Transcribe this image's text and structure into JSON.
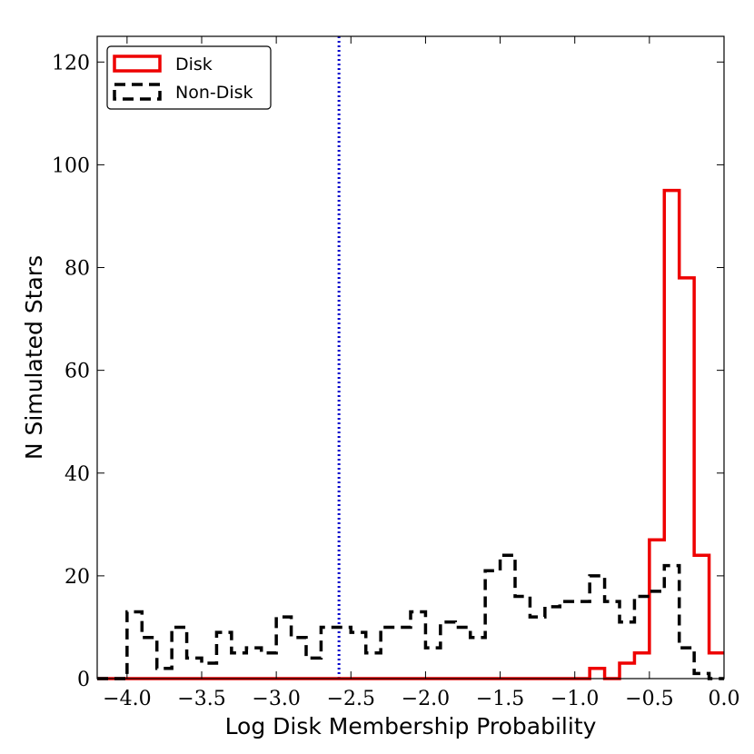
{
  "chart_data": {
    "type": "histogram",
    "title": "",
    "xlabel": "Log Disk Membership Probability",
    "ylabel": "N Simulated Stars",
    "xlim": [
      -4.2,
      0.0
    ],
    "ylim": [
      0,
      125
    ],
    "xticks": [
      -4.0,
      -3.5,
      -3.0,
      -2.5,
      -2.0,
      -1.5,
      -1.0,
      -0.5,
      0.0
    ],
    "xtick_labels": [
      "−4.0",
      "−3.5",
      "−3.0",
      "−2.5",
      "−2.0",
      "−1.5",
      "−1.0",
      "−0.5",
      "0.0"
    ],
    "yticks": [
      0,
      20,
      40,
      60,
      80,
      100,
      120
    ],
    "ytick_labels": [
      "0",
      "20",
      "40",
      "60",
      "80",
      "100",
      "120"
    ],
    "grid": false,
    "legend_position": "top-left",
    "threshold_line": {
      "x": -2.58,
      "color": "#0000cc",
      "style": "dotted"
    },
    "series": [
      {
        "name": "Disk",
        "color": "#ee0000",
        "style": "solid",
        "bins": [
          [
            -4.2,
            0
          ],
          [
            -0.9,
            2
          ],
          [
            -0.8,
            0
          ],
          [
            -0.7,
            3
          ],
          [
            -0.6,
            5
          ],
          [
            -0.5,
            27
          ],
          [
            -0.4,
            95
          ],
          [
            -0.3,
            78
          ],
          [
            -0.2,
            24
          ],
          [
            -0.1,
            5
          ]
        ],
        "end": 0.0
      },
      {
        "name": "Non-Disk",
        "color": "#000000",
        "style": "dashed",
        "bins": [
          [
            -4.2,
            0
          ],
          [
            -4.0,
            13
          ],
          [
            -3.9,
            8
          ],
          [
            -3.8,
            2
          ],
          [
            -3.7,
            10
          ],
          [
            -3.6,
            4
          ],
          [
            -3.5,
            3
          ],
          [
            -3.4,
            9
          ],
          [
            -3.3,
            5
          ],
          [
            -3.2,
            6
          ],
          [
            -3.1,
            5
          ],
          [
            -3.0,
            12
          ],
          [
            -2.9,
            8
          ],
          [
            -2.8,
            4
          ],
          [
            -2.7,
            10
          ],
          [
            -2.6,
            10
          ],
          [
            -2.5,
            9
          ],
          [
            -2.4,
            5
          ],
          [
            -2.3,
            10
          ],
          [
            -2.2,
            10
          ],
          [
            -2.1,
            13
          ],
          [
            -2.0,
            6
          ],
          [
            -1.9,
            11
          ],
          [
            -1.8,
            10
          ],
          [
            -1.7,
            8
          ],
          [
            -1.6,
            21
          ],
          [
            -1.5,
            24
          ],
          [
            -1.4,
            16
          ],
          [
            -1.3,
            12
          ],
          [
            -1.2,
            14
          ],
          [
            -1.1,
            15
          ],
          [
            -1.0,
            15
          ],
          [
            -0.9,
            20
          ],
          [
            -0.8,
            15
          ],
          [
            -0.7,
            11
          ],
          [
            -0.6,
            16
          ],
          [
            -0.5,
            17
          ],
          [
            -0.4,
            22
          ],
          [
            -0.3,
            6
          ],
          [
            -0.2,
            1
          ],
          [
            -0.1,
            0
          ]
        ],
        "end": 0.0
      }
    ]
  }
}
